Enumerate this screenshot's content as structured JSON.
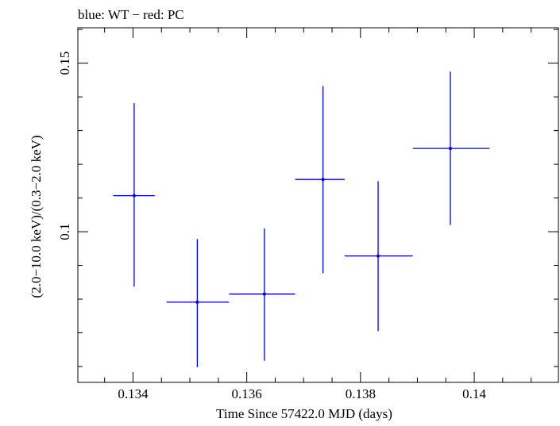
{
  "chart_data": {
    "type": "scatter",
    "title": "blue: WT − red: PC",
    "xlabel": "Time Since 57422.0 MJD (days)",
    "ylabel": "(2.0−10.0 keV)/(0.3−2.0 keV)",
    "xlim": [
      0.13303,
      0.14148
    ],
    "ylim": [
      0.0553,
      0.1605
    ],
    "x_ticks": [
      {
        "value": 0.134,
        "label": "0.134"
      },
      {
        "value": 0.136,
        "label": "0.136"
      },
      {
        "value": 0.138,
        "label": "0.138"
      },
      {
        "value": 0.14,
        "label": "0.14"
      }
    ],
    "x_minor_step": 0.0005,
    "y_ticks": [
      {
        "value": 0.1,
        "label": "0.1"
      },
      {
        "value": 0.15,
        "label": "0.15"
      }
    ],
    "y_minor_step": 0.01,
    "grid": false,
    "series": [
      {
        "color": "#0000e0",
        "points": [
          {
            "x": 0.13402,
            "x_low": 0.13365,
            "x_high": 0.13438,
            "y": 0.1107,
            "y_low": 0.0837,
            "y_high": 0.1381
          },
          {
            "x": 0.13513,
            "x_low": 0.13459,
            "x_high": 0.13569,
            "y": 0.0791,
            "y_low": 0.0598,
            "y_high": 0.0978
          },
          {
            "x": 0.13631,
            "x_low": 0.13569,
            "x_high": 0.13685,
            "y": 0.0815,
            "y_low": 0.0617,
            "y_high": 0.101
          },
          {
            "x": 0.13734,
            "x_low": 0.13685,
            "x_high": 0.13772,
            "y": 0.1155,
            "y_low": 0.0877,
            "y_high": 0.1432
          },
          {
            "x": 0.13831,
            "x_low": 0.13772,
            "x_high": 0.13892,
            "y": 0.0928,
            "y_low": 0.0705,
            "y_high": 0.115
          },
          {
            "x": 0.13958,
            "x_low": 0.13892,
            "x_high": 0.14027,
            "y": 0.1247,
            "y_low": 0.102,
            "y_high": 0.1475
          }
        ]
      }
    ]
  }
}
